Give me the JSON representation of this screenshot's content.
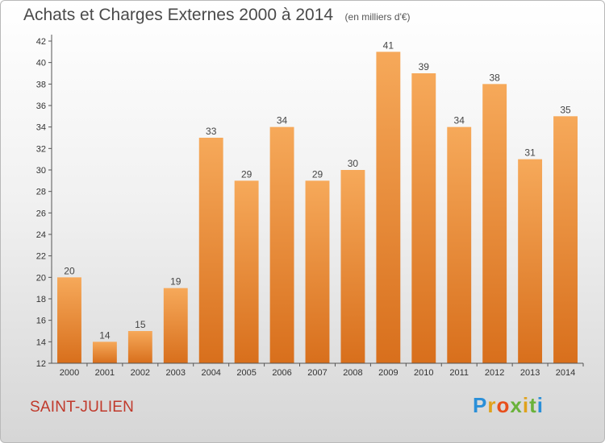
{
  "title": "Achats et Charges Externes 2000 à 2014",
  "subtitle": "(en milliers d'€)",
  "commune": "SAINT-JULIEN",
  "brand": "Proxiti",
  "colors": {
    "bar_light": "#f6a95a",
    "bar_dark": "#d86f1c",
    "axis": "#555555",
    "commune_text": "#c0392b"
  },
  "chart_data": {
    "type": "bar",
    "title": "Achats et Charges Externes 2000 à 2014",
    "subtitle": "(en milliers d'€)",
    "xlabel": "",
    "ylabel": "",
    "categories": [
      "2000",
      "2001",
      "2002",
      "2003",
      "2004",
      "2005",
      "2006",
      "2007",
      "2008",
      "2009",
      "2010",
      "2011",
      "2012",
      "2013",
      "2014"
    ],
    "values": [
      20,
      14,
      15,
      19,
      33,
      29,
      34,
      29,
      30,
      41,
      39,
      34,
      38,
      31,
      35
    ],
    "ylim": [
      12,
      42
    ],
    "yticks": [
      12,
      14,
      16,
      18,
      20,
      22,
      24,
      26,
      28,
      30,
      32,
      34,
      36,
      38,
      40,
      42
    ],
    "grid": false,
    "legend": "none"
  }
}
